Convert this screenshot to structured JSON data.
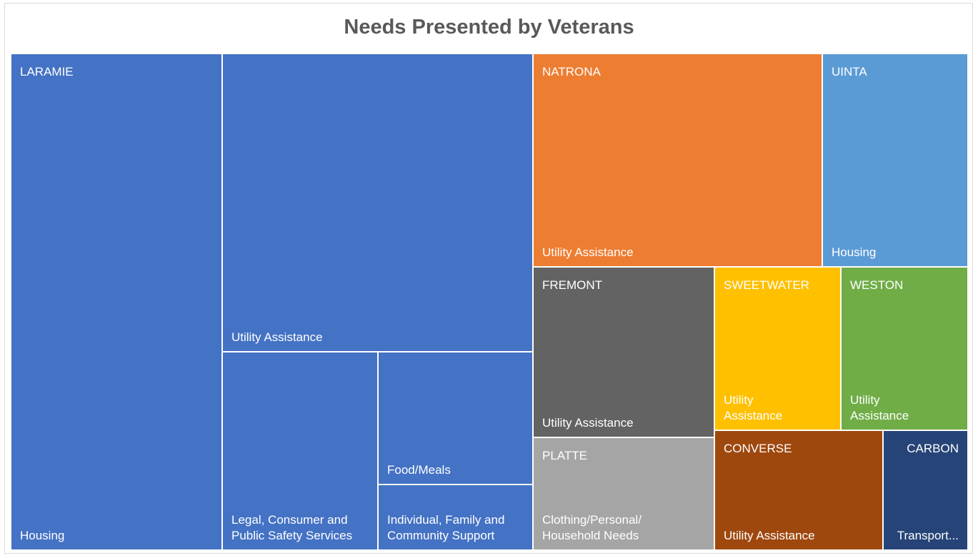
{
  "chart_data": {
    "type": "treemap",
    "title": "Needs Presented by Veterans",
    "groups": [
      {
        "name": "LARAMIE",
        "color": "#4472c4",
        "label_color": "#ffffff",
        "items": [
          {
            "name": "Housing"
          },
          {
            "name": "Utility Assistance"
          },
          {
            "name": "Legal, Consumer and Public Safety Services"
          },
          {
            "name": "Food/Meals"
          },
          {
            "name": "Individual, Family and Community Support"
          }
        ]
      },
      {
        "name": "NATRONA",
        "color": "#ed7d31",
        "label_color": "#ffffff",
        "items": [
          {
            "name": "Utility Assistance"
          }
        ]
      },
      {
        "name": "UINTA",
        "color": "#5b9bd5",
        "label_color": "#ffffff",
        "items": [
          {
            "name": "Housing"
          }
        ]
      },
      {
        "name": "FREMONT",
        "color": "#636363",
        "label_color": "#ffffff",
        "items": [
          {
            "name": "Utility Assistance"
          }
        ]
      },
      {
        "name": "SWEETWATER",
        "color": "#ffc000",
        "label_color": "#ffffff",
        "items": [
          {
            "name": "Utility Assistance"
          }
        ]
      },
      {
        "name": "WESTON",
        "color": "#70ad47",
        "label_color": "#ffffff",
        "items": [
          {
            "name": "Utility Assistance"
          }
        ]
      },
      {
        "name": "PLATTE",
        "color": "#a5a5a5",
        "label_color": "#ffffff",
        "items": [
          {
            "name": "Clothing/Personal/ Household Needs"
          }
        ]
      },
      {
        "name": "CONVERSE",
        "color": "#9e480e",
        "label_color": "#ffffff",
        "items": [
          {
            "name": "Utility Assistance"
          }
        ]
      },
      {
        "name": "CARBON",
        "color": "#264478",
        "label_color": "#ffffff",
        "items": [
          {
            "name": "Transport..."
          }
        ]
      }
    ]
  }
}
